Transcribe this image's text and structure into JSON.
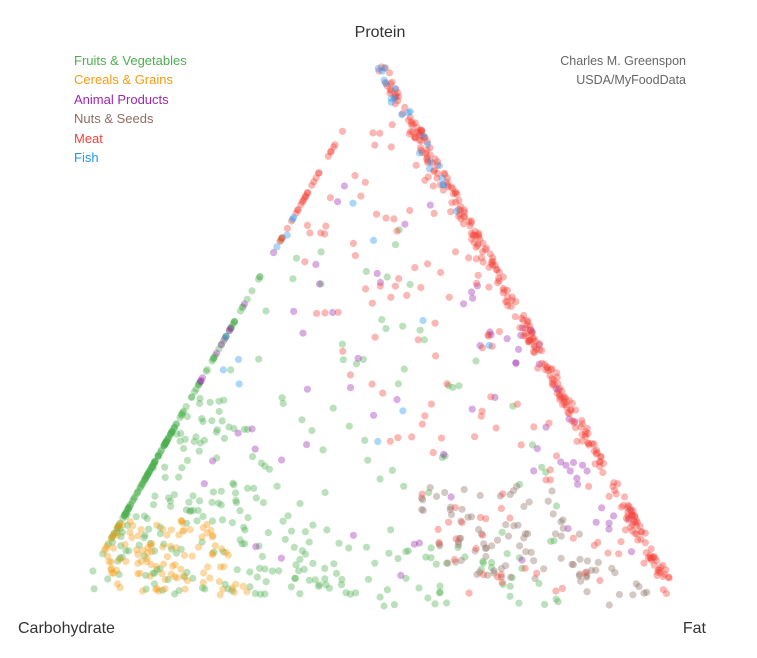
{
  "chart_data": {
    "type": "scatter",
    "subtype": "ternary",
    "vertices": {
      "top": "Protein",
      "left": "Carbohydrate",
      "right": "Fat"
    },
    "credits": [
      "Charles M. Greenspon",
      "USDA/MyFoodData"
    ],
    "legend_position": "top-left",
    "series": [
      {
        "name": "Fruits & Vegetables",
        "color": "#4caf50"
      },
      {
        "name": "Cereals & Grains",
        "color": "#f39c12"
      },
      {
        "name": "Animal Products",
        "color": "#9c27b0"
      },
      {
        "name": "Nuts & Seeds",
        "color": "#8d6e63"
      },
      {
        "name": "Meat",
        "color": "#f44336"
      },
      {
        "name": "Fish",
        "color": "#2196f3"
      }
    ],
    "clusters": [
      {
        "series": 0,
        "n": 240,
        "carb": [
          0.55,
          0.96
        ],
        "protein": [
          0.02,
          0.38
        ]
      },
      {
        "series": 0,
        "n": 140,
        "carb": [
          0.1,
          0.9
        ],
        "protein": [
          0.02,
          0.75
        ]
      },
      {
        "series": 0,
        "n": 50,
        "carb": [
          0.2,
          0.6
        ],
        "protein": [
          0.0,
          0.12
        ]
      },
      {
        "series": 1,
        "n": 110,
        "carb": [
          0.7,
          0.92
        ],
        "protein": [
          0.02,
          0.16
        ]
      },
      {
        "series": 2,
        "n": 55,
        "carb": [
          0.0,
          0.7
        ],
        "protein": [
          0.05,
          0.8
        ]
      },
      {
        "series": 2,
        "n": 30,
        "carb": [
          0.0,
          0.08
        ],
        "protein": [
          0.15,
          0.6
        ]
      },
      {
        "series": 3,
        "n": 80,
        "carb": [
          0.1,
          0.35
        ],
        "protein": [
          0.05,
          0.22
        ]
      },
      {
        "series": 3,
        "n": 15,
        "carb": [
          0.05,
          0.15
        ],
        "protein": [
          0.0,
          0.08
        ]
      },
      {
        "series": 4,
        "n": 300,
        "carb": [
          0.0,
          0.02
        ],
        "protein": [
          0.05,
          0.99
        ]
      },
      {
        "series": 4,
        "n": 160,
        "carb": [
          0.0,
          0.35
        ],
        "protein": [
          0.02,
          0.9
        ]
      },
      {
        "series": 5,
        "n": 22,
        "carb": [
          0.0,
          0.03
        ],
        "protein": [
          0.7,
          0.99
        ]
      },
      {
        "series": 5,
        "n": 14,
        "carb": [
          0.05,
          0.55
        ],
        "protein": [
          0.3,
          0.75
        ]
      }
    ]
  }
}
